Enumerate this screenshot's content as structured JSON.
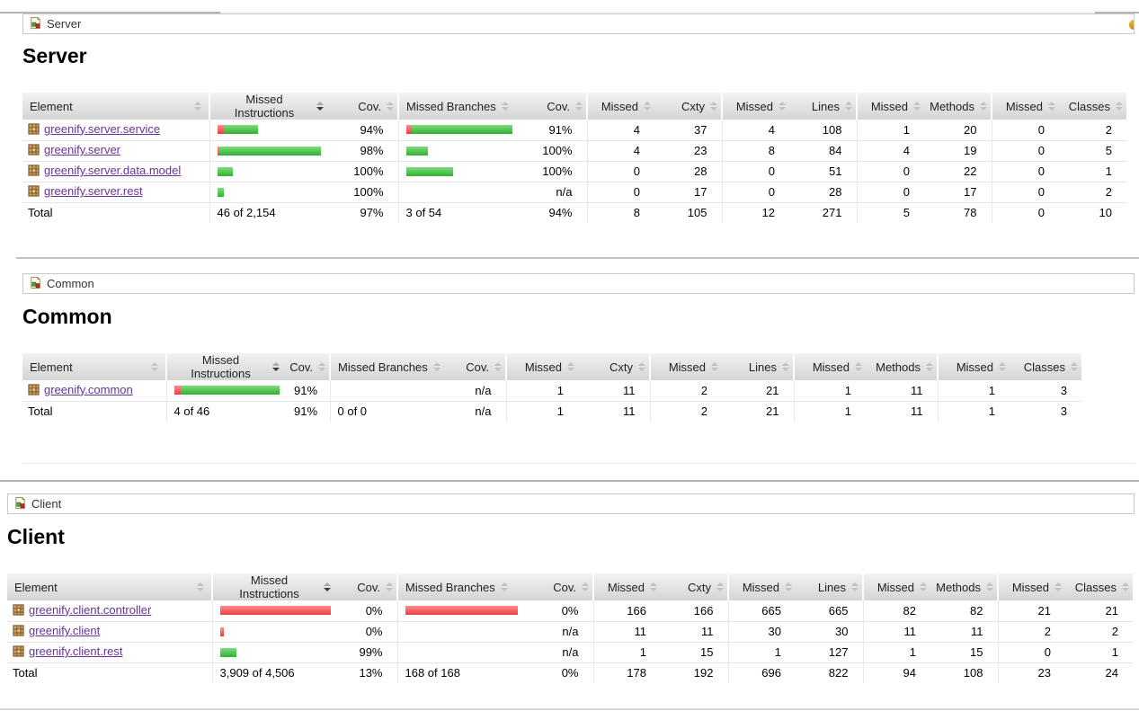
{
  "columns": [
    "Element",
    "Missed Instructions",
    "Cov.",
    "Missed Branches",
    "Cov.",
    "Missed",
    "Cxty",
    "Missed",
    "Lines",
    "Missed",
    "Methods",
    "Missed",
    "Classes"
  ],
  "colors": {
    "covered_green": "#30b230",
    "missed_red": "#ee3d3d",
    "link_purple": "#663399"
  },
  "sections": [
    {
      "breadcrumb": "Server",
      "title": "Server",
      "rows": [
        {
          "element": "greenify.server.service",
          "ibar": {
            "red": 7,
            "green": 38
          },
          "icov": "94%",
          "bbar": {
            "red": 7,
            "green": 119
          },
          "bcov": "91%",
          "nums": [
            "4",
            "37",
            "4",
            "108",
            "1",
            "20",
            "0",
            "2"
          ]
        },
        {
          "element": "greenify.server",
          "ibar": {
            "red": 2,
            "green": 113
          },
          "icov": "98%",
          "bbar": {
            "red": 0,
            "green": 24
          },
          "bcov": "100%",
          "nums": [
            "4",
            "23",
            "8",
            "84",
            "4",
            "19",
            "0",
            "5"
          ]
        },
        {
          "element": "greenify.server.data.model",
          "ibar": {
            "red": 0,
            "green": 17
          },
          "icov": "100%",
          "bbar": {
            "red": 0,
            "green": 52
          },
          "bcov": "100%",
          "nums": [
            "0",
            "28",
            "0",
            "51",
            "0",
            "22",
            "0",
            "1"
          ]
        },
        {
          "element": "greenify.server.rest",
          "ibar": {
            "red": 0,
            "green": 7
          },
          "icov": "100%",
          "bbar": {
            "red": 0,
            "green": 0
          },
          "bcov": "n/a",
          "nums": [
            "0",
            "17",
            "0",
            "28",
            "0",
            "17",
            "0",
            "2"
          ]
        }
      ],
      "total": {
        "label": "Total",
        "instr": "46 of 2,154",
        "icov": "97%",
        "branch": "3 of 54",
        "bcov": "94%",
        "nums": [
          "8",
          "105",
          "12",
          "271",
          "5",
          "78",
          "0",
          "10"
        ]
      }
    },
    {
      "breadcrumb": "Common",
      "title": "Common",
      "rows": [
        {
          "element": "greenify.common",
          "ibar": {
            "red": 8,
            "green": 112
          },
          "icov": "91%",
          "bbar": {
            "red": 0,
            "green": 0
          },
          "bcov": "n/a",
          "nums": [
            "1",
            "11",
            "2",
            "21",
            "1",
            "11",
            "1",
            "3"
          ]
        }
      ],
      "total": {
        "label": "Total",
        "instr": "4 of 46",
        "icov": "91%",
        "branch": "0 of 0",
        "bcov": "n/a",
        "nums": [
          "1",
          "11",
          "2",
          "21",
          "1",
          "11",
          "1",
          "3"
        ]
      }
    },
    {
      "breadcrumb": "Client",
      "title": "Client",
      "rows": [
        {
          "element": "greenify.client.controller",
          "ibar": {
            "red": 125,
            "green": 0
          },
          "icov": "0%",
          "bbar": {
            "red": 125,
            "green": 0
          },
          "bcov": "0%",
          "nums": [
            "166",
            "166",
            "665",
            "665",
            "82",
            "82",
            "21",
            "21"
          ]
        },
        {
          "element": "greenify.client",
          "ibar": {
            "red": 4,
            "green": 0
          },
          "icov": "0%",
          "bbar": {
            "red": 0,
            "green": 0
          },
          "bcov": "n/a",
          "nums": [
            "11",
            "11",
            "30",
            "30",
            "11",
            "11",
            "2",
            "2"
          ]
        },
        {
          "element": "greenify.client.rest",
          "ibar": {
            "red": 0,
            "green": 18
          },
          "icov": "99%",
          "bbar": {
            "red": 0,
            "green": 0
          },
          "bcov": "n/a",
          "nums": [
            "1",
            "15",
            "1",
            "127",
            "1",
            "15",
            "0",
            "1"
          ]
        }
      ],
      "total": {
        "label": "Total",
        "instr": "3,909 of 4,506",
        "icov": "13%",
        "branch": "168 of 168",
        "bcov": "0%",
        "nums": [
          "178",
          "192",
          "696",
          "822",
          "94",
          "108",
          "23",
          "24"
        ]
      }
    }
  ]
}
